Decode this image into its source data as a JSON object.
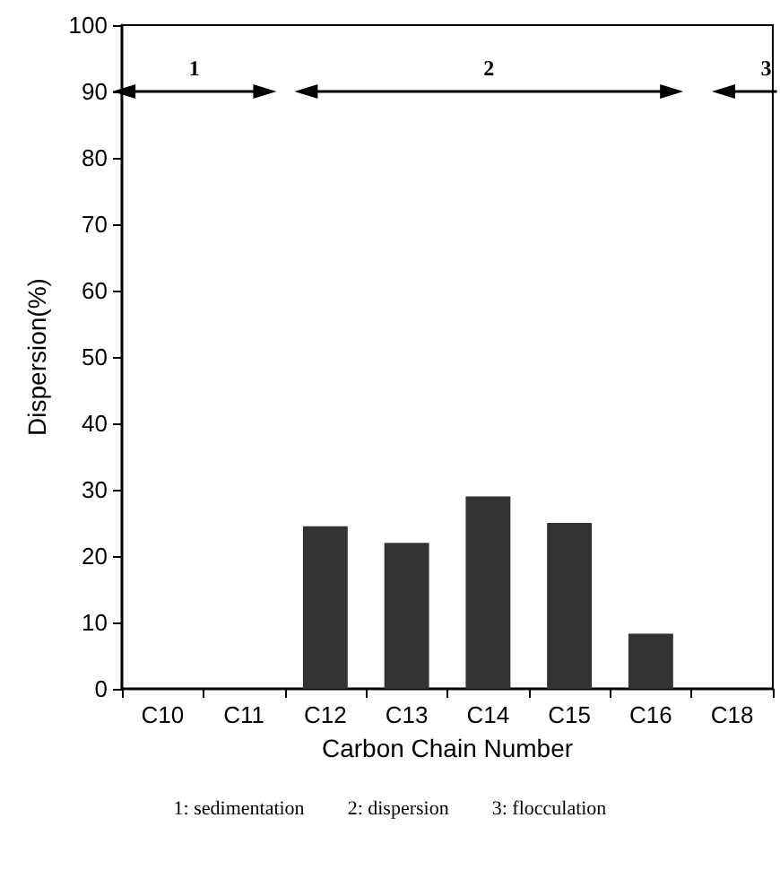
{
  "chart_data": {
    "type": "bar",
    "xlabel": "Carbon Chain Number",
    "ylabel": "Dispersion(%)",
    "categories": [
      "C10",
      "C11",
      "C12",
      "C13",
      "C14",
      "C15",
      "C16",
      "C18"
    ],
    "values": [
      0,
      0,
      24.5,
      22,
      29,
      25,
      8.3,
      0
    ],
    "color": "#333333",
    "ylim": [
      0,
      100
    ],
    "yticks": [
      0,
      10,
      20,
      30,
      40,
      50,
      60,
      70,
      80,
      90,
      100
    ],
    "annotations": [
      "1",
      "2",
      "3",
      "1: sedimentation",
      "2: dispersion",
      "3: flocculation"
    ]
  }
}
